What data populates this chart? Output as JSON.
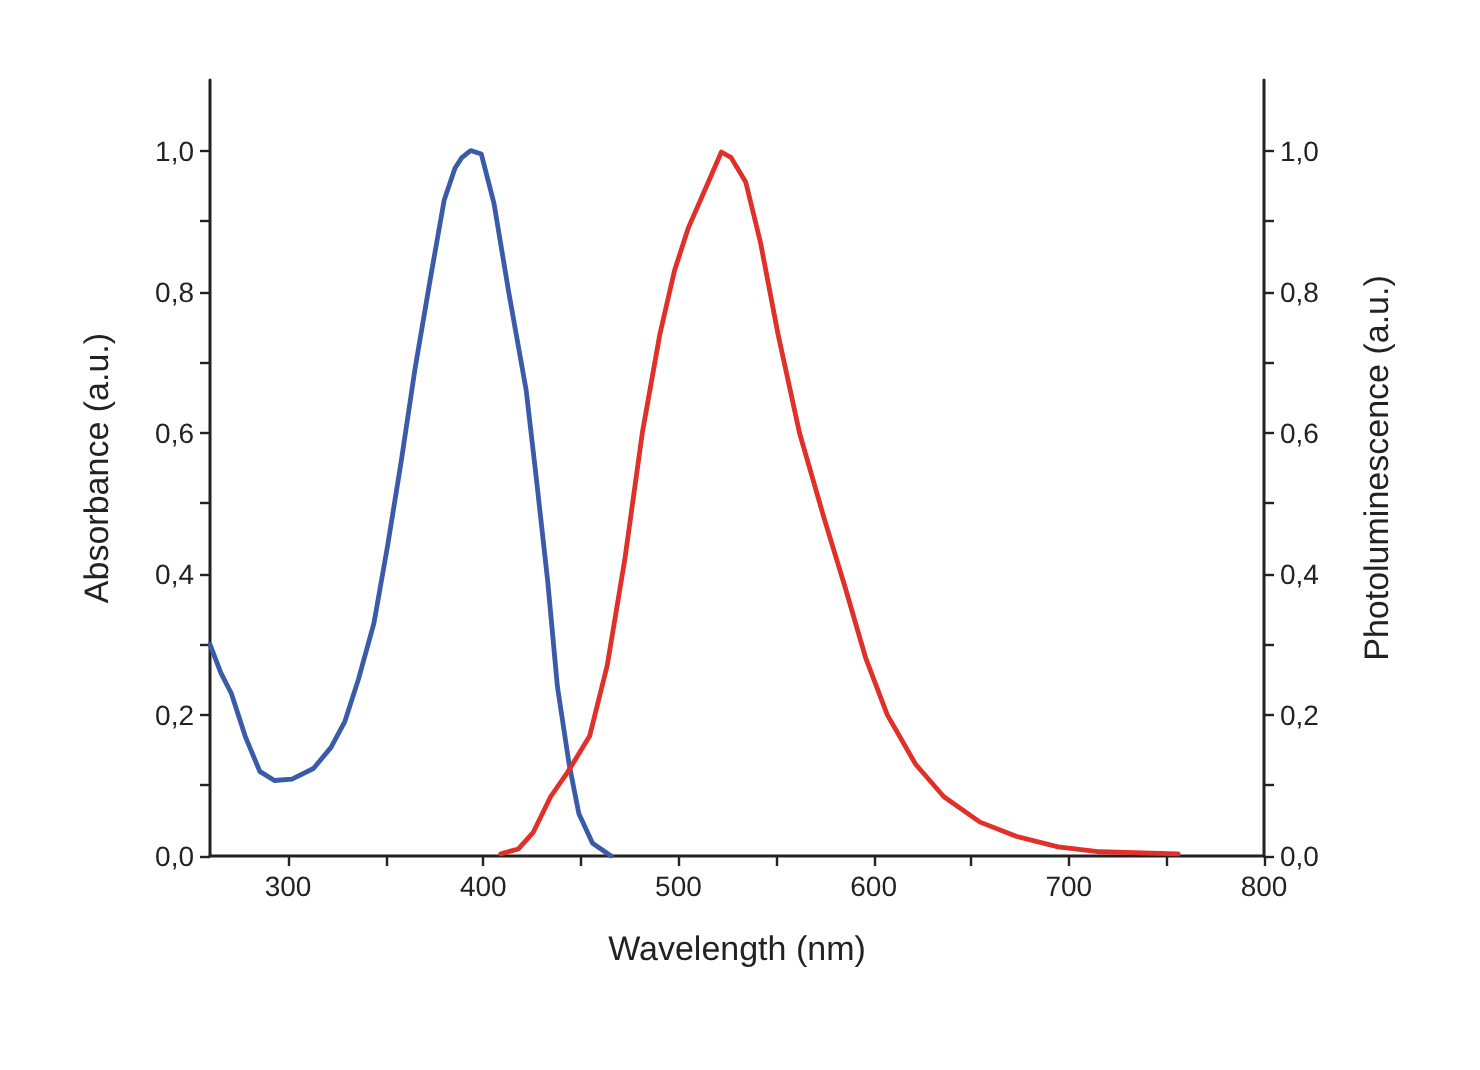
{
  "chart_data": {
    "type": "line",
    "xlabel": "Wavelength (nm)",
    "ylabel": "Absorbance (a.u.)",
    "y2label": "Photoluminescence (a.u.)",
    "xlim": [
      260,
      800
    ],
    "xticks": [
      300,
      {
        "value": 350,
        "label": null
      },
      400,
      {
        "value": 450,
        "label": null
      },
      500,
      {
        "value": 550,
        "label": null
      },
      600,
      {
        "value": 650,
        "label": null
      },
      700,
      {
        "value": 750,
        "label": null
      },
      800
    ],
    "ylim": [
      0,
      1.1
    ],
    "yticks": [
      {
        "value": 0,
        "label": "0,0"
      },
      {
        "value": 0.1,
        "label": null
      },
      {
        "value": 0.2,
        "label": "0,2"
      },
      {
        "value": 0.3,
        "label": null
      },
      {
        "value": 0.4,
        "label": "0,4"
      },
      {
        "value": 0.5,
        "label": null
      },
      {
        "value": 0.6,
        "label": "0,6"
      },
      {
        "value": 0.7,
        "label": null
      },
      {
        "value": 0.8,
        "label": "0,8"
      },
      {
        "value": 0.9,
        "label": null
      },
      {
        "value": 1.0,
        "label": "1,0"
      }
    ],
    "y2lim": [
      0,
      1.1
    ],
    "y2ticks": [
      {
        "value": 0,
        "label": "0,0"
      },
      {
        "value": 0.1,
        "label": null
      },
      {
        "value": 0.2,
        "label": "0,2"
      },
      {
        "value": 0.3,
        "label": null
      },
      {
        "value": 0.4,
        "label": "0,4"
      },
      {
        "value": 0.5,
        "label": null
      },
      {
        "value": 0.6,
        "label": "0,6"
      },
      {
        "value": 0.7,
        "label": null
      },
      {
        "value": 0.8,
        "label": "0,8"
      },
      {
        "value": 0.9,
        "label": null
      },
      {
        "value": 1.0,
        "label": "1,0"
      }
    ],
    "grid": false,
    "marker": "none",
    "line_style": "solid",
    "series": [
      {
        "color": "#3a5ba8",
        "x": [
          260,
          265.5,
          271,
          278,
          285.5,
          293,
          302,
          313,
          322,
          329,
          336,
          344,
          351,
          358,
          365,
          373,
          380,
          385.5,
          389,
          393.5,
          399,
          405.5,
          413,
          422,
          427,
          433,
          438,
          444,
          449,
          456,
          465.5
        ],
        "values": [
          0.3,
          0.26,
          0.23,
          0.17,
          0.12,
          0.107,
          0.109,
          0.124,
          0.154,
          0.19,
          0.25,
          0.33,
          0.44,
          0.56,
          0.69,
          0.82,
          0.93,
          0.975,
          0.99,
          1.0,
          0.995,
          0.925,
          0.8,
          0.66,
          0.54,
          0.39,
          0.24,
          0.13,
          0.06,
          0.018,
          0.0
        ]
      },
      {
        "color": "#e0302a",
        "x": [
          409,
          418,
          425.5,
          434.5,
          443.5,
          454.5,
          463.5,
          472.5,
          481.5,
          490.5,
          498,
          505,
          514.5,
          522,
          527,
          534.5,
          542,
          551,
          562,
          574.5,
          585.5,
          596,
          607,
          621.5,
          636,
          654.5,
          673,
          694.5,
          716,
          756
        ],
        "values": [
          0.003,
          0.01,
          0.033,
          0.084,
          0.12,
          0.17,
          0.27,
          0.42,
          0.6,
          0.74,
          0.83,
          0.89,
          0.95,
          0.998,
          0.99,
          0.955,
          0.87,
          0.74,
          0.6,
          0.48,
          0.38,
          0.28,
          0.2,
          0.13,
          0.084,
          0.048,
          0.028,
          0.013,
          0.006,
          0.003
        ]
      }
    ]
  }
}
